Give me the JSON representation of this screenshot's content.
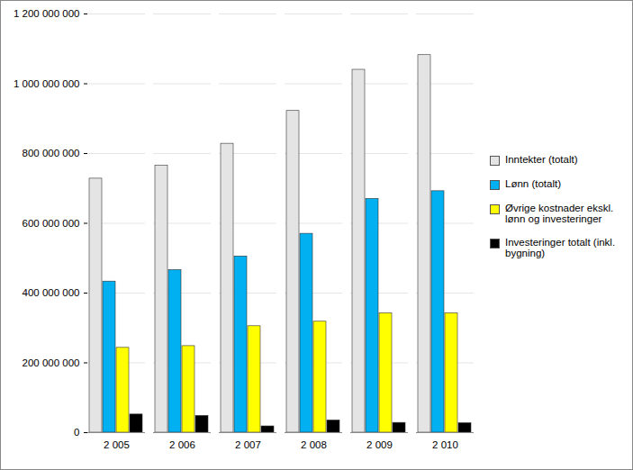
{
  "chart_data": {
    "type": "bar",
    "categories": [
      "2 005",
      "2 006",
      "2 007",
      "2 008",
      "2 009",
      "2 010"
    ],
    "series": [
      {
        "name": "Inntekter (totalt)",
        "color": "#e4e4e4",
        "values": [
          728000000,
          765000000,
          828000000,
          922000000,
          1040000000,
          1082000000
        ]
      },
      {
        "name": "Lønn (totalt)",
        "color": "#00b0f0",
        "values": [
          433000000,
          466000000,
          505000000,
          570000000,
          670000000,
          692000000
        ]
      },
      {
        "name": "Øvrige kostnader ekskl. lønn og investeringer",
        "color": "#ffff00",
        "values": [
          243000000,
          248000000,
          305000000,
          318000000,
          342000000,
          342000000
        ]
      },
      {
        "name": "Investeringer totalt (inkl. bygning)",
        "color": "#000000",
        "values": [
          52000000,
          48000000,
          18000000,
          35000000,
          28000000,
          27000000
        ]
      }
    ],
    "ylim": [
      0,
      1200000000
    ],
    "yticks": [
      0,
      {
        "value": 200000000,
        "label": "200 000 000"
      },
      {
        "value": 400000000,
        "label": "400 000 000"
      },
      {
        "value": 600000000,
        "label": "600 000 000"
      },
      {
        "value": 800000000,
        "label": "800 000 000"
      },
      {
        "value": 1000000000,
        "label": "1 000 000 000"
      },
      {
        "value": 1200000000,
        "label": "1 200 000 000"
      }
    ],
    "grid": true,
    "legend": "right"
  }
}
